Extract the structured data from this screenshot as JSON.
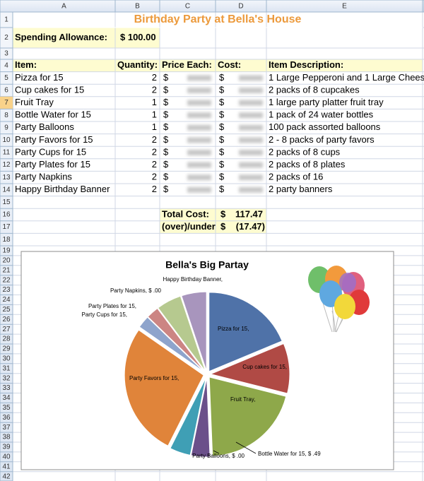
{
  "sheet": {
    "columns": [
      "A",
      "B",
      "C",
      "D",
      "E"
    ],
    "row_numbers": [
      1,
      2,
      3,
      4,
      5,
      6,
      7,
      8,
      9,
      10,
      11,
      12,
      13,
      14,
      15,
      16,
      17,
      18,
      19,
      20,
      21,
      22,
      23,
      24,
      25,
      26,
      27,
      28,
      29,
      30,
      31,
      32,
      33,
      34,
      35,
      36,
      37,
      38,
      39,
      40,
      41,
      42
    ],
    "title": "Birthday Party at Bella's House",
    "allowance_label": "Spending Allowance:",
    "allowance": "$ 100.00",
    "headers": [
      "Item:",
      "Quantity:",
      "Price Each:",
      "Cost:",
      "Item Description:"
    ],
    "currency": "$",
    "items": [
      {
        "item": "Pizza for 15",
        "quantity": 2,
        "description": "1 Large Pepperoni and 1 Large Cheese"
      },
      {
        "item": "Cup cakes for 15",
        "quantity": 2,
        "description": "2 packs of 8 cupcakes"
      },
      {
        "item": "Fruit Tray",
        "quantity": 1,
        "description": "1 large party platter fruit tray"
      },
      {
        "item": "Bottle Water for 15",
        "quantity": 1,
        "description": "1 pack of 24 water bottles"
      },
      {
        "item": "Party Balloons",
        "quantity": 1,
        "description": "100 pack assorted balloons"
      },
      {
        "item": "Party Favors for 15",
        "quantity": 2,
        "description": "2 - 8 packs of party favors"
      },
      {
        "item": "Party Cups for 15",
        "quantity": 2,
        "description": "2 packs of 8 cups"
      },
      {
        "item": "Party Plates for 15",
        "quantity": 2,
        "description": "2 packs of 8 plates"
      },
      {
        "item": "Party Napkins",
        "quantity": 2,
        "description": "2 packs of 16"
      },
      {
        "item": "Happy Birthday Banner",
        "quantity": 2,
        "description": "2 party banners"
      }
    ],
    "total_label": "Total Cost:",
    "total": "117.47",
    "over_label": "(over)/under",
    "over": "(17.47)"
  },
  "chart_data": {
    "type": "pie",
    "title": "Bella's Big Partay",
    "labels": [
      "Pizza for 15,",
      "Cup cakes for 15,",
      "Fruit Tray,",
      "Bottle Water for 15, $ .49",
      "Party Balloons, $ .00",
      "Party Favors for 15,",
      "Party Cups for 15,",
      "Party Plates for 15,",
      "Party Napkins, $ .00",
      "Happy Birthday Banner,"
    ],
    "values": [
      21.99,
      11.99,
      24.0,
      4.49,
      5.0,
      32.0,
      3.0,
      3.0,
      6.0,
      6.0
    ],
    "colors": [
      "#4f72a8",
      "#b04a45",
      "#8ea84a",
      "#6b508a",
      "#3f9fb5",
      "#e0843a",
      "#8ea4cc",
      "#cc8583",
      "#b6c98f",
      "#a895bd"
    ]
  }
}
